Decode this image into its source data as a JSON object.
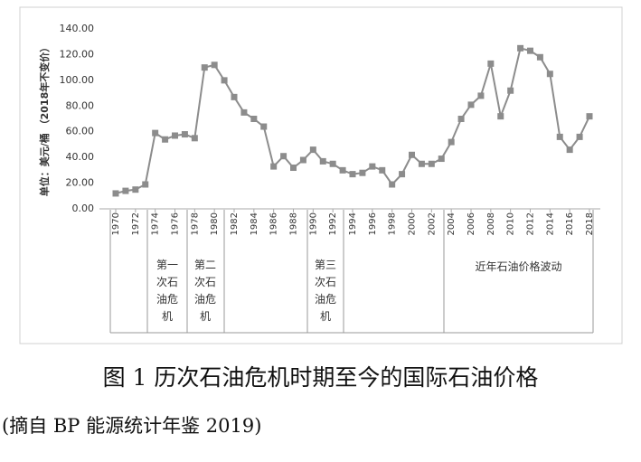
{
  "chart_data": {
    "type": "line",
    "y_label": "单位：美元/桶 （2018年不变价）",
    "x": [
      1970,
      1971,
      1972,
      1973,
      1974,
      1975,
      1976,
      1977,
      1978,
      1979,
      1980,
      1981,
      1982,
      1983,
      1984,
      1985,
      1986,
      1987,
      1988,
      1989,
      1990,
      1991,
      1992,
      1993,
      1994,
      1995,
      1996,
      1997,
      1998,
      1999,
      2000,
      2001,
      2002,
      2003,
      2004,
      2005,
      2006,
      2007,
      2008,
      2009,
      2010,
      2011,
      2012,
      2013,
      2014,
      2015,
      2016,
      2017,
      2018
    ],
    "values": [
      12,
      14,
      15,
      19,
      59,
      54,
      57,
      58,
      55,
      110,
      112,
      100,
      87,
      75,
      70,
      64,
      33,
      41,
      32,
      38,
      46,
      37,
      35,
      30,
      27,
      28,
      33,
      30,
      19,
      27,
      42,
      35,
      35,
      39,
      52,
      70,
      81,
      88,
      113,
      72,
      92,
      125,
      123,
      118,
      105,
      56,
      46,
      56,
      72
    ],
    "color": "#8c8c8c",
    "xlim": [
      1970,
      2018
    ],
    "xticks": [
      1970,
      1972,
      1974,
      1976,
      1978,
      1980,
      1982,
      1984,
      1986,
      1988,
      1990,
      1992,
      1994,
      1996,
      1998,
      2000,
      2002,
      2004,
      2006,
      2008,
      2010,
      2012,
      2014,
      2016,
      2018
    ],
    "ylim": [
      0,
      140
    ],
    "yticks": [
      {
        "value": 0,
        "label": "0.00"
      },
      {
        "value": 20,
        "label": "20.00"
      },
      {
        "value": 40,
        "label": "40.00"
      },
      {
        "value": 60,
        "label": "60.00"
      },
      {
        "value": 80,
        "label": "80.00"
      },
      {
        "value": 100,
        "label": "100.00"
      },
      {
        "value": 120,
        "label": "120.00"
      },
      {
        "value": 140,
        "label": "140.00"
      }
    ],
    "grid": false,
    "annotations": [
      "第一次石油危机",
      "第二次石油危机",
      "第三次石油危机",
      "近年石油价格波动"
    ],
    "caption": "图 1  历次石油危机时期至今的国际石油价格",
    "source": "(摘自 BP 能源统计年鉴 2019)"
  }
}
